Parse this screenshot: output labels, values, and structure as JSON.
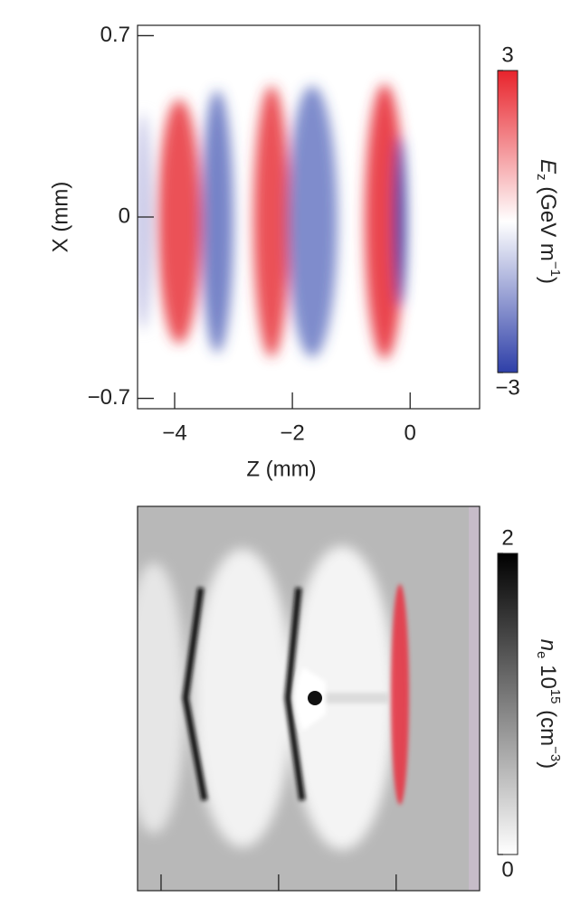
{
  "chart_data": [
    {
      "type": "heatmap",
      "xlabel": "Z (mm)",
      "ylabel": "X (mm)",
      "xlim": [
        -4.63,
        1.18
      ],
      "ylim": [
        -0.74,
        0.74
      ],
      "xticks": [
        {
          "value": -4,
          "label": "−4"
        },
        {
          "value": -2,
          "label": "−2"
        },
        0
      ],
      "yticks": [
        0.7,
        0,
        {
          "value": -0.7,
          "label": "−0.7"
        }
      ],
      "show_tick_labels": true,
      "colorbar": {
        "clim": [
          -3,
          3
        ],
        "ticks": [
          3,
          {
            "value": -3,
            "label": "−3"
          }
        ],
        "colors": [
          "#2e3fa8",
          "#ffffff",
          "#e8232b"
        ],
        "label": [
          "E",
          "z",
          " (GeV m",
          "−1",
          ")"
        ]
      }
    },
    {
      "type": "heatmap",
      "xlim": [
        -4.4,
        1.42
      ],
      "xticks": [
        -4,
        -2,
        0
      ],
      "show_tick_labels": false,
      "colorbar": {
        "clim": [
          0,
          2
        ],
        "ticks": [
          2,
          0
        ],
        "colors": [
          "#ffffff",
          "#000000"
        ],
        "label": [
          "n",
          "e",
          " 10",
          "15",
          " (cm",
          "−3",
          ")"
        ]
      }
    }
  ]
}
